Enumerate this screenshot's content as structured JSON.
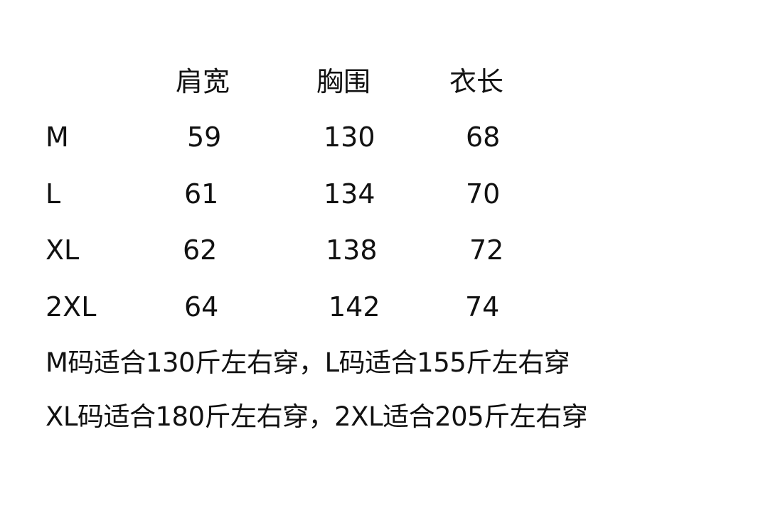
{
  "table": {
    "headers": [
      "肩宽",
      "胸围",
      "衣长"
    ],
    "rows": [
      {
        "size": "M",
        "values": [
          "59",
          "130",
          "68"
        ]
      },
      {
        "size": "L",
        "values": [
          "61",
          "134",
          "70"
        ]
      },
      {
        "size": "XL",
        "values": [
          "62",
          "138",
          "72"
        ]
      },
      {
        "size": "2XL",
        "values": [
          "64",
          "142",
          "74"
        ]
      }
    ]
  },
  "notes": [
    "M码适合130斤左右穿，L码适合155斤左右穿",
    "XL码适合180斤左右穿，2XL适合205斤左右穿"
  ]
}
